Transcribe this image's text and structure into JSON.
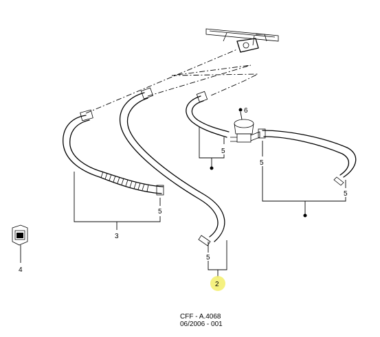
{
  "callouts": {
    "part_2": "2",
    "part_3": "3",
    "part_4": "4",
    "part_5": "5",
    "part_6": "6"
  },
  "reference": {
    "line1": "CFF - A.4068",
    "line2": "06/2006 - 001"
  },
  "colors": {
    "highlight": "#f3ef6a",
    "ink": "#000000"
  }
}
